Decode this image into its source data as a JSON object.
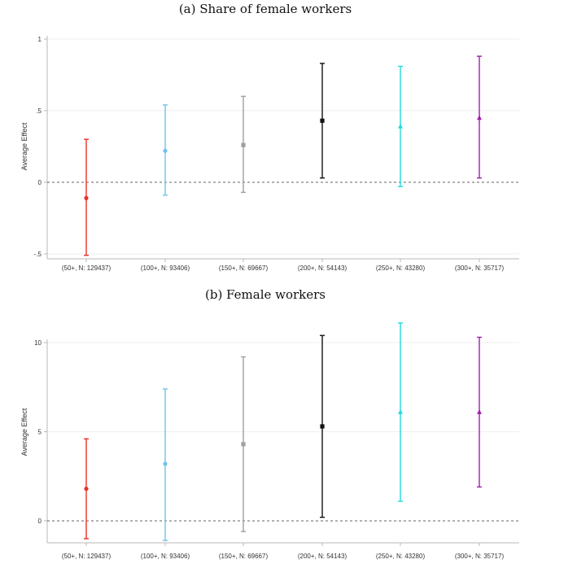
{
  "chart_data": [
    {
      "type": "errorbar",
      "title": "(a) Share of female workers",
      "ylabel": "Average Effect",
      "xlabel": "",
      "ylim": [
        -0.5,
        1
      ],
      "yticks": [
        1,
        0.5,
        0,
        -0.5
      ],
      "ytick_labels": [
        "1",
        ".5",
        "0",
        "-.5"
      ],
      "reference_line": 0,
      "categories": [
        "(50+, N: 129437)",
        "(100+, N: 93406)",
        "(150+, N: 69667)",
        "(200+, N: 54143)",
        "(250+, N: 43280)",
        "(300+, N: 35717)"
      ],
      "estimates": [
        -0.11,
        0.22,
        0.26,
        0.43,
        0.39,
        0.45
      ],
      "ci_low": [
        -0.51,
        -0.09,
        -0.07,
        0.03,
        -0.03,
        0.03
      ],
      "ci_high": [
        0.3,
        0.54,
        0.6,
        0.83,
        0.81,
        0.88
      ],
      "colors": [
        "#e8302a",
        "#6ec3ef",
        "#a0a0a0",
        "#111111",
        "#24d8dc",
        "#a21caf"
      ],
      "markers": [
        "circle",
        "circle",
        "square",
        "square",
        "triangle",
        "triangle"
      ]
    },
    {
      "type": "errorbar",
      "title": "(b) Female workers",
      "ylabel": "Average Effect",
      "xlabel": "",
      "ylim": [
        0,
        10
      ],
      "yticks": [
        10,
        5,
        0
      ],
      "ytick_labels": [
        "10",
        "5",
        "0"
      ],
      "reference_line": 0,
      "categories": [
        "(50+, N: 129437)",
        "(100+, N: 93406)",
        "(150+, N: 69667)",
        "(200+, N: 54143)",
        "(250+, N: 43280)",
        "(300+, N: 35717)"
      ],
      "estimates": [
        1.8,
        3.2,
        4.3,
        5.3,
        6.1,
        6.1
      ],
      "ci_low": [
        -1.0,
        -1.1,
        -0.6,
        0.2,
        1.1,
        1.9
      ],
      "ci_high": [
        4.6,
        7.4,
        9.2,
        10.4,
        11.1,
        10.3
      ],
      "colors": [
        "#e8302a",
        "#6ec3ef",
        "#a0a0a0",
        "#111111",
        "#24d8dc",
        "#a21caf"
      ],
      "markers": [
        "circle",
        "circle",
        "square",
        "square",
        "triangle",
        "triangle"
      ]
    }
  ]
}
